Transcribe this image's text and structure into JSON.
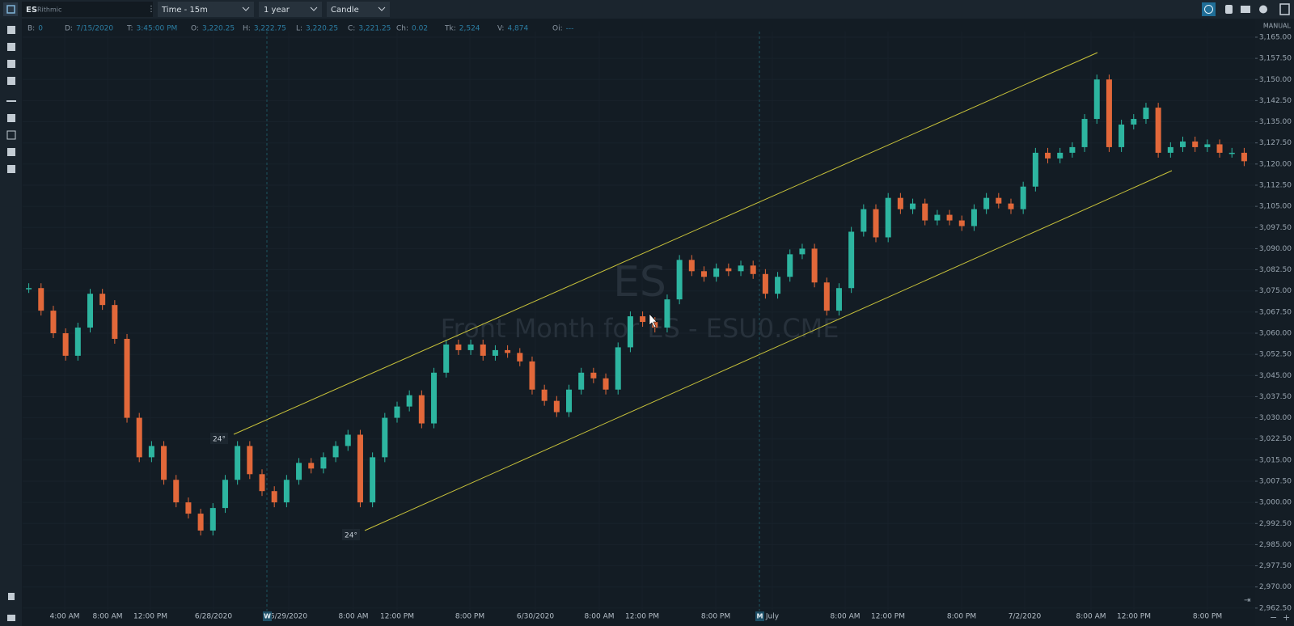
{
  "toolbar": {
    "symbol": "ES",
    "provider": "Rithmic",
    "timeframe": "Time - 15m",
    "range": "1 year",
    "chart_type": "Candle"
  },
  "info_bar": [
    {
      "label": "B:",
      "value": "0"
    },
    {
      "label": "D:",
      "value": "7/15/2020"
    },
    {
      "label": "T:",
      "value": "3:45:00 PM"
    },
    {
      "label": "O:",
      "value": "3,220.25"
    },
    {
      "label": "H:",
      "value": "3,222.75"
    },
    {
      "label": "L:",
      "value": "3,220.25"
    },
    {
      "label": "C:",
      "value": "3,221.25"
    },
    {
      "label": "Ch:",
      "value": "0.02"
    },
    {
      "label": "Tk:",
      "value": "2,524"
    },
    {
      "label": "V:",
      "value": "4,874"
    },
    {
      "label": "Oi:",
      "value": "---"
    }
  ],
  "scale_mode": "MANUAL",
  "watermark": {
    "symbol": "ES",
    "description": "Front Month for ES - ESU0.CME"
  },
  "drawings": [
    {
      "label": "24°"
    },
    {
      "label": "24°"
    }
  ],
  "chart_data": {
    "type": "candlestick",
    "values": [
      3076,
      3068,
      3060,
      3052,
      3062,
      3074,
      3070,
      3058,
      3030,
      3016,
      3020,
      3008,
      3000,
      2996,
      2990,
      2998,
      3008,
      3020,
      3010,
      3004,
      3000,
      3008,
      3014,
      3012,
      3016,
      3020,
      3024,
      3000,
      3016,
      3030,
      3034,
      3038,
      3028,
      3046,
      3056,
      3054,
      3056,
      3052,
      3054,
      3053,
      3050,
      3040,
      3036,
      3032,
      3040,
      3046,
      3044,
      3040,
      3055,
      3066,
      3064,
      3062,
      3072,
      3086,
      3082,
      3080,
      3083,
      3082,
      3084,
      3081,
      3074,
      3080,
      3088,
      3090,
      3078,
      3068,
      3076,
      3096,
      3104,
      3094,
      3108,
      3104,
      3106,
      3100,
      3102,
      3100,
      3098,
      3104,
      3108,
      3106,
      3104,
      3112,
      3124,
      3122,
      3124,
      3126,
      3136,
      3150,
      3126,
      3134,
      3136,
      3140,
      3124,
      3126,
      3128,
      3126,
      3127,
      3124,
      3124,
      3121
    ],
    "ylim": [
      2961.6,
      3167
    ],
    "yticks": [
      {
        "value": 3165,
        "label": "3,165.00"
      },
      {
        "value": 3157.5,
        "label": "3,157.50"
      },
      {
        "value": 3150,
        "label": "3,150.00"
      },
      {
        "value": 3142.5,
        "label": "3,142.50"
      },
      {
        "value": 3135,
        "label": "3,135.00"
      },
      {
        "value": 3127.5,
        "label": "3,127.50"
      },
      {
        "value": 3120,
        "label": "3,120.00"
      },
      {
        "value": 3112.5,
        "label": "3,112.50"
      },
      {
        "value": 3105,
        "label": "3,105.00"
      },
      {
        "value": 3097.5,
        "label": "3,097.50"
      },
      {
        "value": 3090,
        "label": "3,090.00"
      },
      {
        "value": 3082.5,
        "label": "3,082.50"
      },
      {
        "value": 3075,
        "label": "3,075.00"
      },
      {
        "value": 3067.5,
        "label": "3,067.50"
      },
      {
        "value": 3060,
        "label": "3,060.00"
      },
      {
        "value": 3052.5,
        "label": "3,052.50"
      },
      {
        "value": 3045,
        "label": "3,045.00"
      },
      {
        "value": 3037.5,
        "label": "3,037.50"
      },
      {
        "value": 3030,
        "label": "3,030.00"
      },
      {
        "value": 3022.5,
        "label": "3,022.50"
      },
      {
        "value": 3015,
        "label": "3,015.00"
      },
      {
        "value": 3007.5,
        "label": "3,007.50"
      },
      {
        "value": 3000,
        "label": "3,000.00"
      },
      {
        "value": 2992.5,
        "label": "2,992.50"
      },
      {
        "value": 2985,
        "label": "2,985.00"
      },
      {
        "value": 2977.5,
        "label": "2,977.50"
      },
      {
        "value": 2970,
        "label": "2,970.00"
      },
      {
        "value": 2962.5,
        "label": "2,962.50"
      }
    ],
    "x_labels": [
      "4:00 AM",
      "8:00 AM",
      "12:00 PM",
      "6/28/2020",
      "6/29/2020",
      "8:00 AM",
      "12:00 PM",
      "8:00 PM",
      "6/30/2020",
      "8:00 AM",
      "12:00 PM",
      "8:00 PM",
      "July",
      "8:00 AM",
      "12:00 PM",
      "8:00 PM",
      "7/2/2020",
      "8:00 AM",
      "12:00 PM",
      "8:00 PM"
    ],
    "session_markers": [
      "W",
      "M"
    ],
    "colors": {
      "up": "#2db5a0",
      "down": "#e2683a"
    },
    "grid": true
  }
}
